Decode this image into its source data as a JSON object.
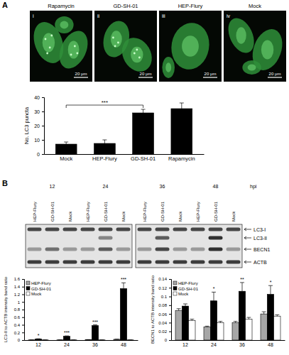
{
  "panels": {
    "a": "A",
    "b": "B"
  },
  "images": [
    {
      "title": "Rapamycin",
      "label": "i",
      "scale_bar": "20 μm"
    },
    {
      "title": "GD-SH-01",
      "label": "ii",
      "scale_bar": "20 μm"
    },
    {
      "title": "HEP-Flury",
      "label": "iii",
      "scale_bar": "20 μm"
    },
    {
      "title": "Mock",
      "label": "iv",
      "scale_bar": "20 μm"
    }
  ],
  "blot": {
    "x_label": "hpi",
    "timepoints": [
      "12",
      "24",
      "36",
      "48"
    ],
    "lanes": [
      "HEP-Flury",
      "GD-SH-01",
      "Mock"
    ],
    "bands": [
      "LC3-I",
      "LC3-II",
      "BECN1",
      "ACTB"
    ]
  },
  "chart_data": [
    {
      "type": "bar",
      "y_label": "No. LC3 puncta",
      "categories": [
        "Mock",
        "HEP-Flury",
        "GD-SH-01",
        "Rapamycin"
      ],
      "values": [
        7,
        7.5,
        29,
        32
      ],
      "errors": [
        1.5,
        2.5,
        2.5,
        4
      ],
      "color": "#000000",
      "ylim": [
        0,
        40
      ],
      "yticks": [
        0,
        10,
        20,
        30,
        40
      ],
      "annotations": [
        {
          "text": "***",
          "from": "Mock",
          "to": "GD-SH-01"
        }
      ]
    },
    {
      "type": "bar",
      "y_label": "LC3-II to ACTB intensity band ratio",
      "categories": [
        "12",
        "24",
        "36",
        "48"
      ],
      "series": [
        {
          "name": "HEP-Flury",
          "color": "#a6a6a6",
          "values": [
            0.005,
            0.005,
            0.01,
            0.02
          ],
          "errors": [
            0.002,
            0.002,
            0.003,
            0.005
          ]
        },
        {
          "name": "GD-SH-01",
          "color": "#000000",
          "values": [
            0.03,
            0.1,
            0.38,
            1.35
          ],
          "errors": [
            0.005,
            0.01,
            0.02,
            0.15
          ]
        },
        {
          "name": "Mock",
          "color": "#ffffff",
          "values": [
            0.005,
            0.005,
            0.005,
            0.005
          ],
          "errors": [
            0.001,
            0.001,
            0.001,
            0.001
          ]
        }
      ],
      "ylim": [
        0,
        1.6
      ],
      "yticks": [
        0,
        0.2,
        0.4,
        0.6,
        0.8,
        1,
        1.2,
        1.4,
        1.6
      ],
      "legend": "upper left",
      "annotations": [
        {
          "category": "12",
          "text": "*"
        },
        {
          "category": "24",
          "text": "***"
        },
        {
          "category": "36",
          "text": "***"
        },
        {
          "category": "48",
          "text": "***"
        }
      ]
    },
    {
      "type": "bar",
      "y_label": "BECN1 to ACTB intensity band ratio",
      "categories": [
        "12",
        "24",
        "36",
        "48"
      ],
      "series": [
        {
          "name": "HEP-Flury",
          "color": "#a6a6a6",
          "values": [
            0.068,
            0.03,
            0.04,
            0.06
          ],
          "errors": [
            0.004,
            0.002,
            0.003,
            0.005
          ]
        },
        {
          "name": "GD-SH-01",
          "color": "#000000",
          "values": [
            0.078,
            0.09,
            0.112,
            0.105
          ],
          "errors": [
            0.005,
            0.02,
            0.02,
            0.02
          ]
        },
        {
          "name": "Mock",
          "color": "#ffffff",
          "values": [
            0.045,
            0.04,
            0.048,
            0.055
          ],
          "errors": [
            0.003,
            0.003,
            0.004,
            0.003
          ]
        }
      ],
      "ylim": [
        0,
        0.14
      ],
      "yticks": [
        0,
        0.02,
        0.04,
        0.06,
        0.08,
        0.1,
        0.12,
        0.14
      ],
      "legend": "upper left",
      "annotations": [
        {
          "category": "24",
          "text": "*"
        },
        {
          "category": "36",
          "text": "**"
        },
        {
          "category": "48",
          "text": "*"
        }
      ]
    }
  ]
}
